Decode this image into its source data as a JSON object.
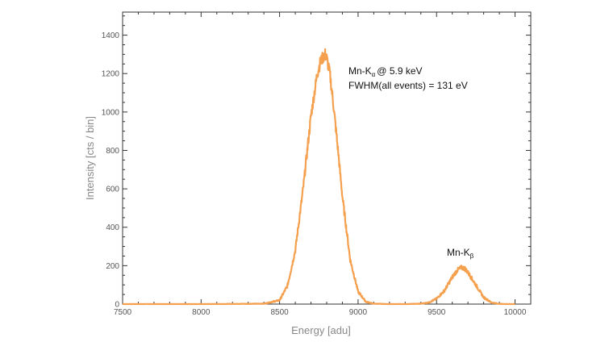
{
  "chart_data": {
    "type": "line",
    "title": "",
    "xlabel": "Energy [adu]",
    "ylabel": "Intensity [cts / bin]",
    "xlim": [
      7500,
      10100
    ],
    "ylim": [
      0,
      1520
    ],
    "xticks": [
      7500,
      8000,
      8500,
      9000,
      9500,
      10000
    ],
    "yticks": [
      0,
      200,
      400,
      600,
      800,
      1000,
      1200,
      1400
    ],
    "grid": false,
    "legend": "none",
    "series": [
      {
        "color": "#f4a04f",
        "x": [
          7500,
          8000,
          8400,
          8500,
          8550,
          8600,
          8650,
          8700,
          8740,
          8760,
          8780,
          8790,
          8800,
          8820,
          8840,
          8870,
          8900,
          8950,
          9000,
          9050,
          9100,
          9200,
          9300,
          9400,
          9450,
          9500,
          9550,
          9600,
          9630,
          9660,
          9680,
          9700,
          9750,
          9800,
          9850,
          9900,
          10000
        ],
        "y": [
          0,
          0,
          2,
          20,
          95,
          280,
          600,
          980,
          1200,
          1260,
          1290,
          1300,
          1280,
          1200,
          1060,
          820,
          560,
          230,
          65,
          12,
          2,
          0,
          0,
          2,
          8,
          28,
          70,
          140,
          175,
          190,
          185,
          165,
          100,
          35,
          8,
          1,
          0
        ]
      }
    ],
    "annotations": [
      {
        "main": "Mn-K",
        "sub": "α",
        "rest": "@ 5.9 keV"
      },
      {
        "text": "FWHM(all events) = 131 eV"
      },
      {
        "main": "Mn-K",
        "sub": "β"
      }
    ]
  }
}
